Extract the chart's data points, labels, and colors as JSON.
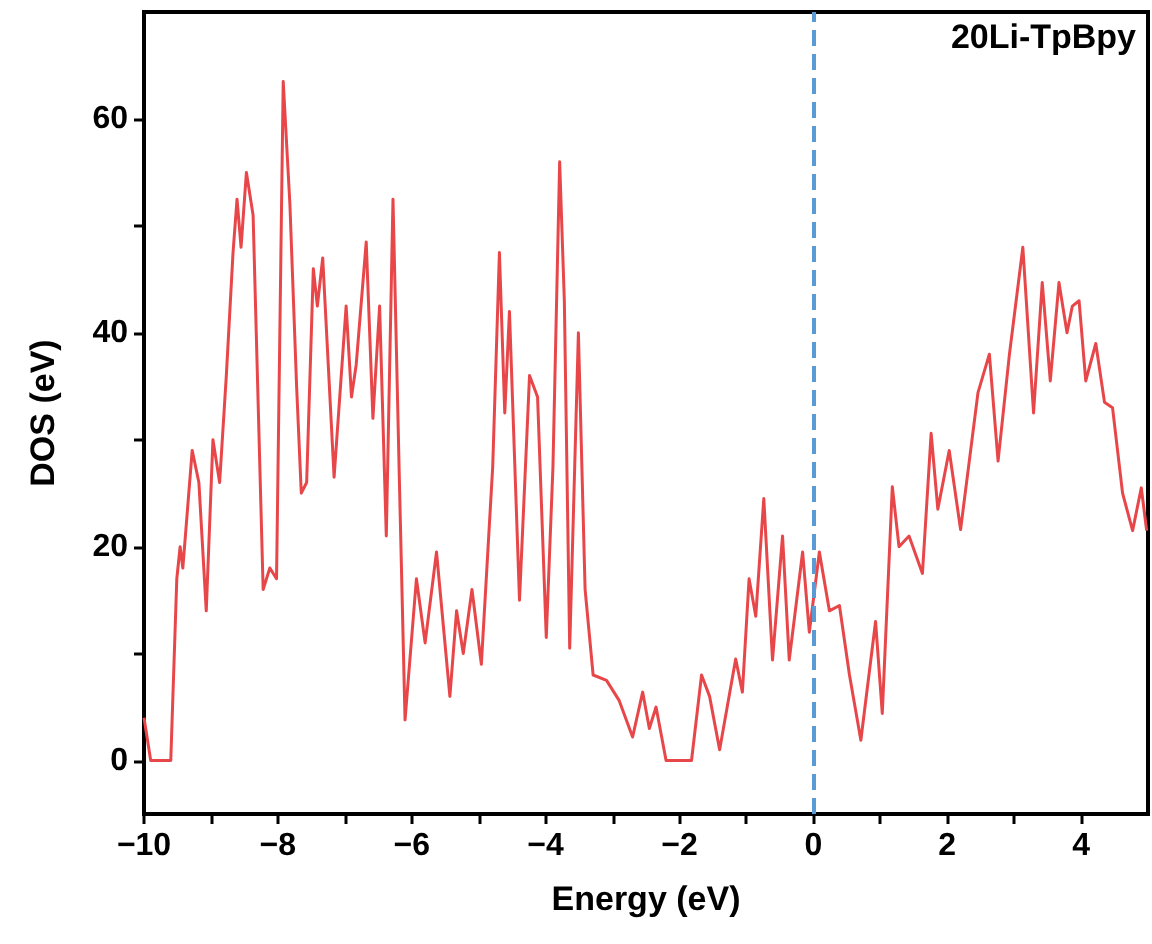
{
  "chart_data": {
    "type": "line",
    "xlabel": "Energy (eV)",
    "ylabel": "DOS (eV)",
    "annotations": [
      "20Li-TpBpy"
    ],
    "xlim": [
      -10,
      5
    ],
    "ylim": [
      -5,
      70
    ],
    "xticks": [
      -10,
      {
        "value": -9,
        "label": null
      },
      -8,
      {
        "value": -7,
        "label": null
      },
      -6,
      {
        "value": -5,
        "label": null
      },
      -4,
      {
        "value": -3,
        "label": null
      },
      -2,
      {
        "value": -1,
        "label": null
      },
      0,
      {
        "value": 1,
        "label": null
      },
      2,
      {
        "value": 3,
        "label": null
      },
      4
    ],
    "yticks": [
      0,
      {
        "value": 10,
        "label": null
      },
      20,
      {
        "value": 30,
        "label": null
      },
      40,
      {
        "value": 50,
        "label": null
      },
      60
    ],
    "marker": "none",
    "line_style": "solid",
    "ref_lines": [
      {
        "axis": "x",
        "value": 0,
        "color": "#5b9bd5",
        "line_style": "dashed"
      }
    ],
    "series": [
      {
        "color": "#e8474a",
        "x": [
          -10,
          -9.9,
          -9.6,
          -9.51,
          -9.46,
          -9.42,
          -9.28,
          -9.18,
          -9.07,
          -8.97,
          -8.87,
          -8.77,
          -8.67,
          -8.61,
          -8.55,
          -8.47,
          -8.37,
          -8.22,
          -8.12,
          -8.02,
          -7.92,
          -7.82,
          -7.72,
          -7.65,
          -7.57,
          -7.47,
          -7.41,
          -7.33,
          -7.16,
          -6.98,
          -6.9,
          -6.83,
          -6.68,
          -6.58,
          -6.48,
          -6.38,
          -6.28,
          -6.18,
          -6.1,
          -5.93,
          -5.8,
          -5.63,
          -5.43,
          -5.33,
          -5.23,
          -5.1,
          -4.96,
          -4.79,
          -4.69,
          -4.61,
          -4.54,
          -4.39,
          -4.24,
          -4.12,
          -3.99,
          -3.89,
          -3.79,
          -3.72,
          -3.64,
          -3.51,
          -3.41,
          -3.29,
          -3.09,
          -2.9,
          -2.7,
          -2.55,
          -2.45,
          -2.35,
          -2.2,
          -1.82,
          -1.67,
          -1.55,
          -1.4,
          -1.16,
          -1.06,
          -0.96,
          -0.86,
          -0.74,
          -0.61,
          -0.46,
          -0.36,
          -0.16,
          -0.06,
          0.09,
          0.24,
          0.39,
          0.54,
          0.71,
          0.93,
          1.03,
          1.18,
          1.28,
          1.43,
          1.63,
          1.76,
          1.86,
          2.03,
          2.2,
          2.46,
          2.63,
          2.76,
          2.93,
          3.13,
          3.29,
          3.42,
          3.54,
          3.67,
          3.79,
          3.87,
          3.97,
          4.07,
          4.22,
          4.35,
          4.47,
          4.62,
          4.77,
          4.9,
          4.98
        ],
        "values": [
          4,
          0,
          0,
          17,
          20,
          18,
          29,
          26,
          14,
          30,
          26,
          36,
          47.5,
          52.5,
          48,
          55,
          51,
          16,
          18,
          17,
          63.5,
          52,
          35,
          25,
          26,
          46,
          42.5,
          47,
          26.5,
          42.5,
          34,
          37,
          48.5,
          32,
          42.5,
          21,
          52.5,
          25,
          3.8,
          17,
          11,
          19.5,
          6,
          14,
          10,
          16,
          9,
          27.5,
          47.5,
          32.5,
          42,
          15,
          36,
          34,
          11.5,
          27.5,
          56,
          43,
          10.5,
          40,
          16,
          8,
          7.5,
          5.6,
          2.2,
          6.4,
          3,
          5,
          0,
          0,
          8,
          6,
          1,
          9.5,
          6.4,
          17,
          13.5,
          24.5,
          9.4,
          21,
          9.4,
          19.5,
          12,
          19.5,
          14,
          14.5,
          8,
          1.9,
          13,
          4.4,
          25.6,
          20,
          21,
          17.5,
          30.6,
          23.5,
          29,
          21.6,
          34.4,
          38,
          28,
          38,
          48,
          32.5,
          44.7,
          35.5,
          44.7,
          40,
          42.5,
          43,
          35.5,
          39,
          33.5,
          33,
          25,
          21.5,
          25.5,
          21.5
        ]
      }
    ]
  }
}
